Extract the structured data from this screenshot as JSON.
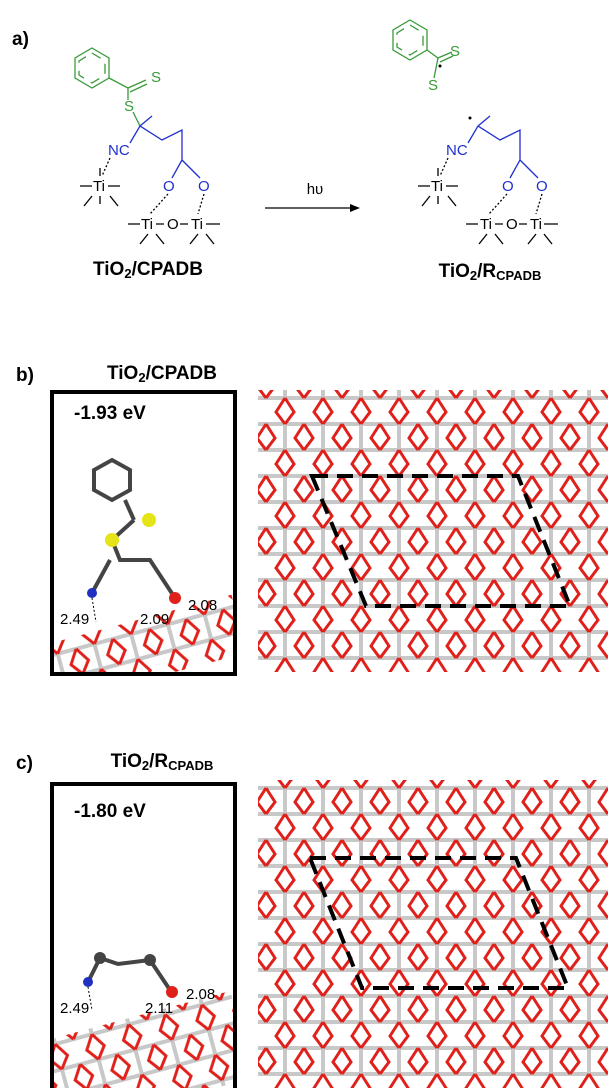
{
  "panel_a": {
    "label": "a)",
    "arrow_label": "hυ",
    "reactant": {
      "atoms": [
        "S",
        "S",
        "NC",
        "Ti",
        "O",
        "O",
        "Ti",
        "O",
        "Ti"
      ],
      "name": {
        "base": "TiO",
        "sub": "2",
        "rest": "/CPADB"
      }
    },
    "product": {
      "atoms": [
        "S",
        "S",
        "NC",
        "Ti",
        "O",
        "O",
        "Ti",
        "O",
        "Ti"
      ],
      "name": {
        "base": "TiO",
        "sub": "2",
        "rest": "/R",
        "sub2": "CPADB"
      }
    }
  },
  "panel_b": {
    "label": "b)",
    "title": {
      "base": "TiO",
      "sub": "2",
      "rest": "/CPADB"
    },
    "energy": "-1.93 eV",
    "distances": [
      2.49,
      2.09,
      2.08
    ]
  },
  "panel_c": {
    "label": "c)",
    "title": {
      "base": "TiO",
      "sub": "2",
      "rest": "/R",
      "sub2": "CPADB"
    },
    "energy": "-1.80 eV",
    "distances": [
      2.49,
      2.11,
      2.08
    ]
  }
}
